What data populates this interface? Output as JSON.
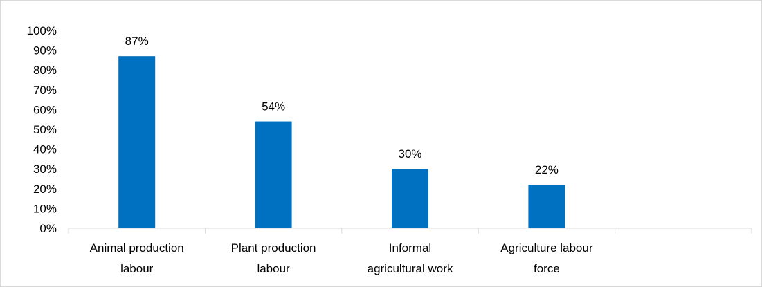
{
  "chart_data": {
    "type": "bar",
    "categories": [
      [
        "Animal production",
        "labour"
      ],
      [
        "Plant production",
        "labour"
      ],
      [
        "Informal",
        "agricultural work"
      ],
      [
        "Agriculture labour",
        "force"
      ],
      [
        ""
      ]
    ],
    "values": [
      87,
      54,
      30,
      22,
      null
    ],
    "data_labels": [
      "87%",
      "54%",
      "30%",
      "22%",
      ""
    ],
    "ylim": [
      0,
      100
    ],
    "y_ticks": [
      0,
      10,
      20,
      30,
      40,
      50,
      60,
      70,
      80,
      90,
      100
    ],
    "y_tick_labels": [
      "0%",
      "10%",
      "20%",
      "30%",
      "40%",
      "50%",
      "60%",
      "70%",
      "80%",
      "90%",
      "100%"
    ],
    "title": "",
    "xlabel": "",
    "ylabel": "",
    "grid": false,
    "legend": "none",
    "bar_color": "#0070c0",
    "axis_color": "#d9d9d9"
  }
}
